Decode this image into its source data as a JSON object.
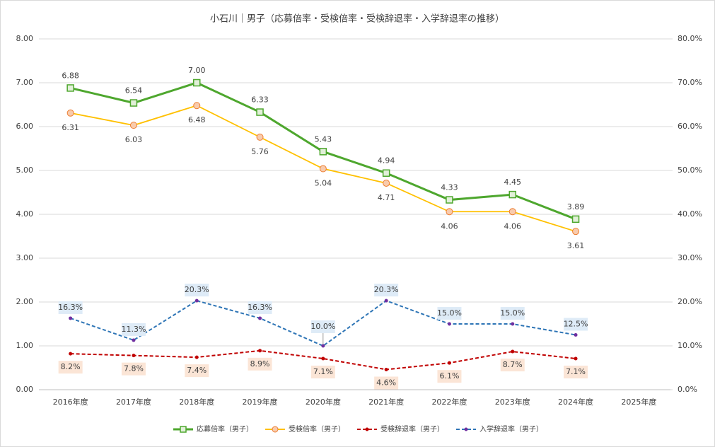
{
  "chart_data": {
    "type": "line",
    "title": "小石川｜男子（応募倍率・受検倍率・受検辞退率・入学辞退率の推移）",
    "categories": [
      "2016年度",
      "2017年度",
      "2018年度",
      "2019年度",
      "2020年度",
      "2021年度",
      "2022年度",
      "2023年度",
      "2024年度",
      "2025年度"
    ],
    "ylim": [
      0,
      8
    ],
    "yticks": [
      {
        "value": 0,
        "label": "0.00"
      },
      {
        "value": 1,
        "label": "1.00"
      },
      {
        "value": 2,
        "label": "2.00"
      },
      {
        "value": 3,
        "label": "3.00"
      },
      {
        "value": 4,
        "label": "4.00"
      },
      {
        "value": 5,
        "label": "5.00"
      },
      {
        "value": 6,
        "label": "6.00"
      },
      {
        "value": 7,
        "label": "7.00"
      },
      {
        "value": 8,
        "label": "8.00"
      }
    ],
    "y2lim": [
      0,
      80
    ],
    "y2ticks": [
      {
        "value": 0,
        "label": "0.0%"
      },
      {
        "value": 10,
        "label": "10.0%"
      },
      {
        "value": 20,
        "label": "20.0%"
      },
      {
        "value": 30,
        "label": "30.0%"
      },
      {
        "value": 40,
        "label": "40.0%"
      },
      {
        "value": 50,
        "label": "50.0%"
      },
      {
        "value": 60,
        "label": "60.0%"
      },
      {
        "value": 70,
        "label": "70.0%"
      },
      {
        "value": 80,
        "label": "80.0%"
      }
    ],
    "grid": true,
    "legend": "bottom",
    "series": [
      {
        "name": "応募倍率（男子）",
        "color": "#4ea72e",
        "marker": "square",
        "dash": false,
        "values": [
          6.88,
          6.54,
          7.0,
          6.33,
          5.43,
          4.94,
          4.33,
          4.45,
          3.89,
          null
        ],
        "value_labels": [
          "6.88",
          "6.54",
          "7.00",
          "6.33",
          "5.43",
          "4.94",
          "4.33",
          "4.45",
          "3.89",
          null
        ]
      },
      {
        "name": "受検倍率（男子）",
        "color": "#ffc000",
        "marker": "circle",
        "dash": false,
        "values": [
          6.31,
          6.03,
          6.48,
          5.76,
          5.04,
          4.71,
          4.06,
          4.06,
          3.61,
          null
        ],
        "value_labels": [
          "6.31",
          "6.03",
          "6.48",
          "5.76",
          "5.04",
          "4.71",
          "4.06",
          "4.06",
          "3.61",
          null
        ]
      },
      {
        "name": "受検辞退率（男子）",
        "color": "#c00000",
        "marker": "dot",
        "dash": true,
        "axis": "y2",
        "values": [
          8.2,
          7.8,
          7.4,
          8.9,
          7.1,
          4.6,
          6.1,
          8.7,
          7.1,
          null
        ],
        "value_labels": [
          "8.2%",
          "7.8%",
          "7.4%",
          "8.9%",
          "7.1%",
          "4.6%",
          "6.1%",
          "8.7%",
          "7.1%",
          null
        ]
      },
      {
        "name": "入学辞退率（男子）",
        "color": "#2e75b6",
        "marker": "dot",
        "dash": true,
        "axis": "y2",
        "values": [
          16.3,
          11.3,
          20.3,
          16.3,
          10.0,
          20.3,
          15.0,
          15.0,
          12.5,
          null
        ],
        "value_labels": [
          "16.3%",
          "11.3%",
          "20.3%",
          "16.3%",
          "10.0%",
          "20.3%",
          "15.0%",
          "15.0%",
          "12.5%",
          null
        ]
      }
    ]
  }
}
